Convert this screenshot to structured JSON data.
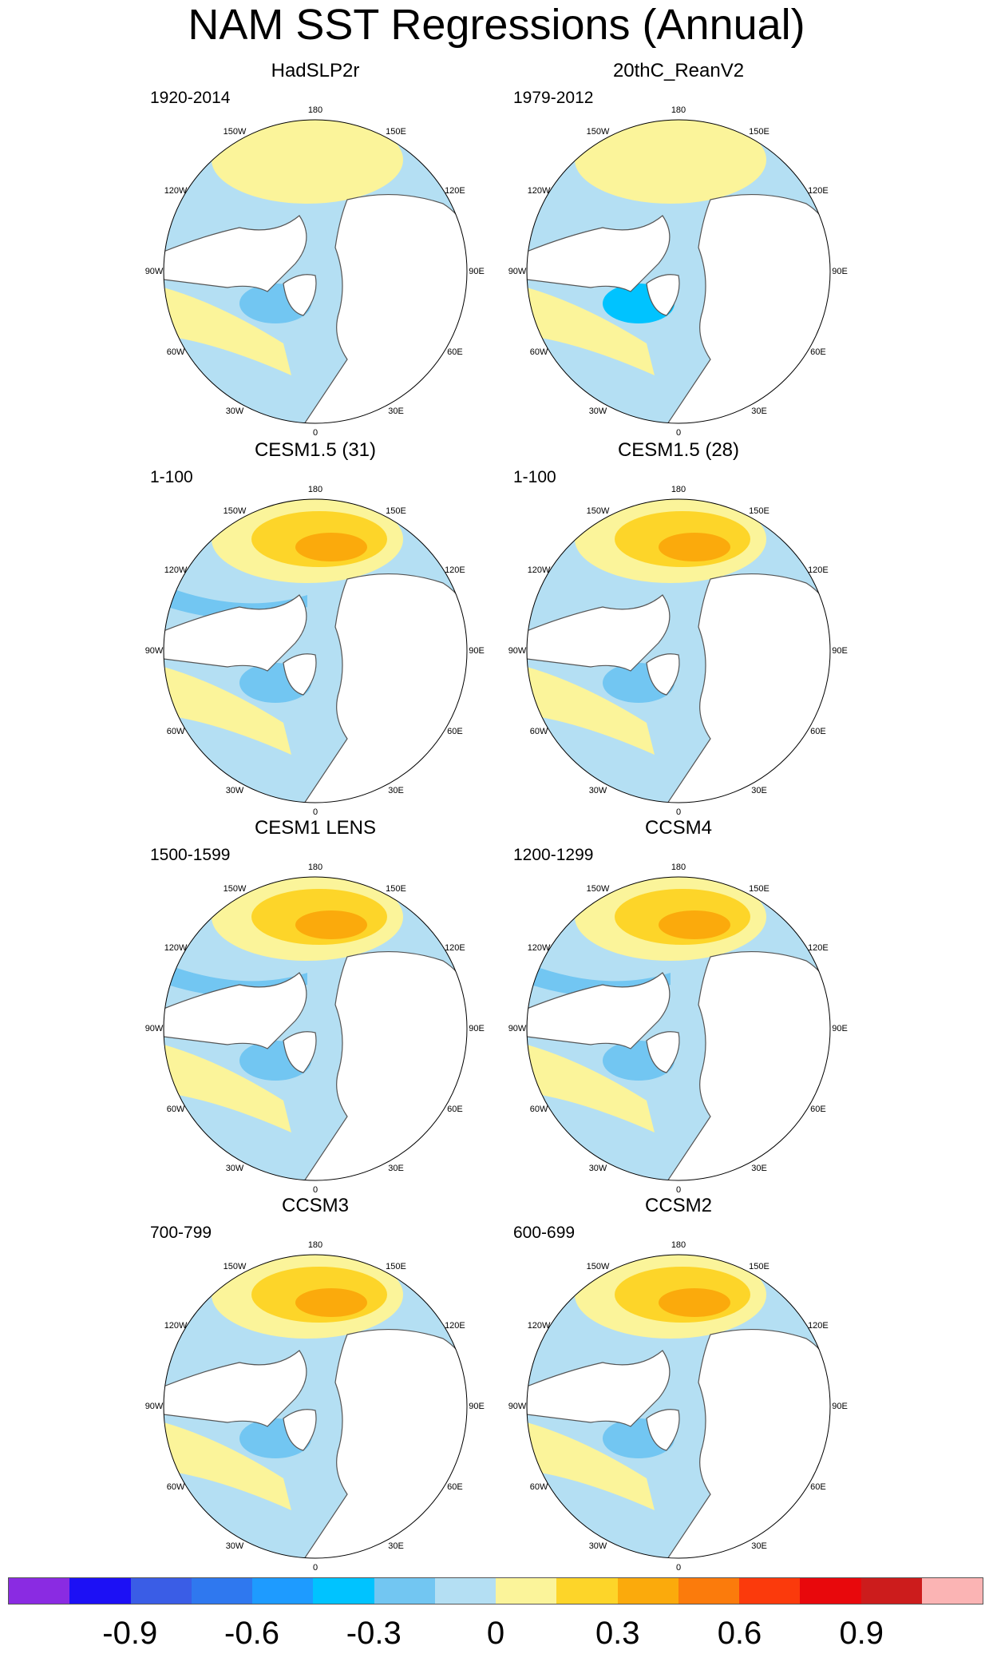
{
  "title": "NAM SST Regressions (Annual)",
  "lon_labels": [
    "180",
    "150E",
    "120E",
    "90E",
    "60E",
    "30E",
    "0",
    "30W",
    "60W",
    "90W",
    "120W",
    "150W"
  ],
  "panels": [
    {
      "title": "HadSLP2r",
      "period": "1920-2014"
    },
    {
      "title": "20thC_ReanV2",
      "period": "1979-2012"
    },
    {
      "title": "CESM1.5 (31)",
      "period": "1-100"
    },
    {
      "title": "CESM1.5 (28)",
      "period": "1-100"
    },
    {
      "title": "CESM1 LENS",
      "period": "1500-1599"
    },
    {
      "title": "CCSM4",
      "period": "1200-1299"
    },
    {
      "title": "CCSM3",
      "period": "700-799"
    },
    {
      "title": "CCSM2",
      "period": "600-699"
    }
  ],
  "colorbar": {
    "colors": [
      "#8a2be2",
      "#1c10f5",
      "#3a5de6",
      "#2f78ef",
      "#1e9bff",
      "#00c3ff",
      "#72c6f2",
      "#b4dff3",
      "#fbf49a",
      "#fdd529",
      "#fbaa0c",
      "#fb7b0c",
      "#fb3a0c",
      "#e8080c",
      "#cc1c1c",
      "#fbb4b4"
    ],
    "labels": [
      "-0.9",
      "-0.6",
      "-0.3",
      "0",
      "0.3",
      "0.6",
      "0.9"
    ]
  }
}
